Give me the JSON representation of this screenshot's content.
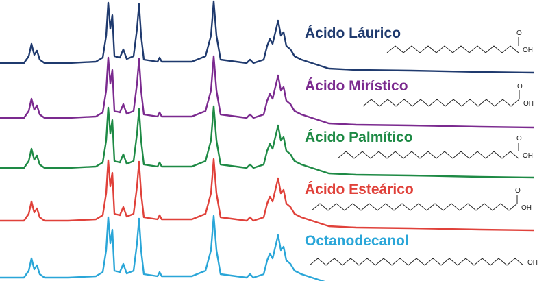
{
  "labels": [
    {
      "name": "Ácido Láurico",
      "atoms": [
        "O",
        "OH"
      ]
    },
    {
      "name": "Ácido Mirístico",
      "atoms": [
        "O",
        "OH"
      ]
    },
    {
      "name": "Ácido Palmítico",
      "atoms": [
        "O",
        "OH"
      ]
    },
    {
      "name": "Ácido Esteárico",
      "atoms": [
        "O",
        "OH"
      ]
    },
    {
      "name": "Octanodecanol",
      "atoms": [
        "OH"
      ]
    }
  ]
}
